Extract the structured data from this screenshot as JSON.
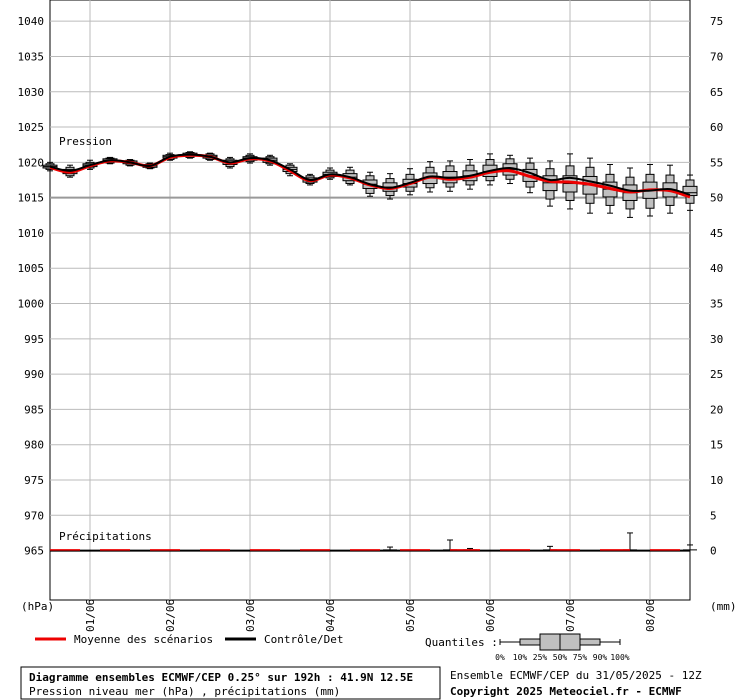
{
  "chart_data": {
    "type": "boxplot_line",
    "left_axis": {
      "label": "(hPa)",
      "ylim": [
        958,
        1043
      ],
      "ticks": [
        1040,
        1035,
        1030,
        1025,
        1020,
        1015,
        1010,
        1005,
        1000,
        995,
        990,
        985,
        980,
        975,
        970,
        965
      ]
    },
    "right_axis": {
      "label": "(mm)",
      "ylim": [
        -7,
        78
      ],
      "ticks": [
        75,
        70,
        65,
        60,
        55,
        50,
        45,
        40,
        35,
        30,
        25,
        20,
        15,
        10,
        5,
        0
      ]
    },
    "x_axis": {
      "range_hours": [
        0,
        192
      ],
      "day_labels": [
        "01/06",
        "02/06",
        "03/06",
        "04/06",
        "05/06",
        "06/06",
        "07/06",
        "08/06"
      ],
      "day_label_hours": [
        12,
        36,
        60,
        84,
        108,
        132,
        156,
        180
      ]
    },
    "labels": {
      "pressure": "Pression",
      "precip": "Précipitations"
    },
    "pressure_series": [
      {
        "h": 0,
        "p0": 1018.8,
        "p10": 1019.0,
        "p25": 1019.2,
        "p50": 1019.4,
        "p75": 1019.6,
        "p90": 1019.8,
        "p100": 1020.0,
        "mean": 1019.3,
        "ctrl": 1019.4
      },
      {
        "h": 6,
        "p0": 1017.9,
        "p10": 1018.1,
        "p25": 1018.4,
        "p50": 1018.7,
        "p75": 1019.0,
        "p90": 1019.3,
        "p100": 1019.6,
        "mean": 1018.6,
        "ctrl": 1018.8
      },
      {
        "h": 12,
        "p0": 1019.0,
        "p10": 1019.2,
        "p25": 1019.4,
        "p50": 1019.6,
        "p75": 1019.8,
        "p90": 1020.0,
        "p100": 1020.3,
        "mean": 1019.5,
        "ctrl": 1019.6
      },
      {
        "h": 18,
        "p0": 1019.8,
        "p10": 1019.9,
        "p25": 1020.1,
        "p50": 1020.3,
        "p75": 1020.5,
        "p90": 1020.6,
        "p100": 1020.7,
        "mean": 1020.2,
        "ctrl": 1020.3
      },
      {
        "h": 24,
        "p0": 1019.5,
        "p10": 1019.6,
        "p25": 1019.8,
        "p50": 1020.0,
        "p75": 1020.2,
        "p90": 1020.3,
        "p100": 1020.4,
        "mean": 1020.0,
        "ctrl": 1020.0
      },
      {
        "h": 30,
        "p0": 1019.1,
        "p10": 1019.2,
        "p25": 1019.3,
        "p50": 1019.5,
        "p75": 1019.7,
        "p90": 1019.8,
        "p100": 1019.9,
        "mean": 1019.5,
        "ctrl": 1019.5
      },
      {
        "h": 36,
        "p0": 1020.3,
        "p10": 1020.4,
        "p25": 1020.6,
        "p50": 1020.8,
        "p75": 1021.0,
        "p90": 1021.1,
        "p100": 1021.3,
        "mean": 1020.7,
        "ctrl": 1020.8
      },
      {
        "h": 42,
        "p0": 1020.6,
        "p10": 1020.7,
        "p25": 1020.9,
        "p50": 1021.1,
        "p75": 1021.3,
        "p90": 1021.4,
        "p100": 1021.5,
        "mean": 1021.0,
        "ctrl": 1021.1
      },
      {
        "h": 48,
        "p0": 1020.3,
        "p10": 1020.4,
        "p25": 1020.6,
        "p50": 1020.8,
        "p75": 1021.0,
        "p90": 1021.2,
        "p100": 1021.3,
        "mean": 1020.8,
        "ctrl": 1020.8
      },
      {
        "h": 54,
        "p0": 1019.2,
        "p10": 1019.4,
        "p25": 1019.7,
        "p50": 1020.0,
        "p75": 1020.3,
        "p90": 1020.5,
        "p100": 1020.7,
        "mean": 1019.9,
        "ctrl": 1020.0
      },
      {
        "h": 60,
        "p0": 1019.9,
        "p10": 1020.1,
        "p25": 1020.3,
        "p50": 1020.6,
        "p75": 1020.8,
        "p90": 1021.0,
        "p100": 1021.2,
        "mean": 1020.5,
        "ctrl": 1020.6
      },
      {
        "h": 66,
        "p0": 1019.6,
        "p10": 1019.8,
        "p25": 1020.0,
        "p50": 1020.3,
        "p75": 1020.6,
        "p90": 1020.8,
        "p100": 1021.0,
        "mean": 1020.2,
        "ctrl": 1020.3
      },
      {
        "h": 72,
        "p0": 1018.1,
        "p10": 1018.4,
        "p25": 1018.7,
        "p50": 1019.0,
        "p75": 1019.3,
        "p90": 1019.6,
        "p100": 1019.8,
        "mean": 1018.8,
        "ctrl": 1019.0
      },
      {
        "h": 78,
        "p0": 1016.8,
        "p10": 1017.0,
        "p25": 1017.2,
        "p50": 1017.5,
        "p75": 1017.8,
        "p90": 1018.1,
        "p100": 1018.3,
        "mean": 1017.4,
        "ctrl": 1017.5
      },
      {
        "h": 84,
        "p0": 1017.6,
        "p10": 1017.8,
        "p25": 1018.0,
        "p50": 1018.3,
        "p75": 1018.6,
        "p90": 1018.9,
        "p100": 1019.2,
        "mean": 1018.2,
        "ctrl": 1018.3
      },
      {
        "h": 90,
        "p0": 1016.8,
        "p10": 1017.0,
        "p25": 1017.4,
        "p50": 1017.9,
        "p75": 1018.4,
        "p90": 1018.9,
        "p100": 1019.3,
        "mean": 1017.8,
        "ctrl": 1017.9
      },
      {
        "h": 96,
        "p0": 1015.2,
        "p10": 1015.6,
        "p25": 1016.3,
        "p50": 1016.9,
        "p75": 1017.5,
        "p90": 1018.1,
        "p100": 1018.6,
        "mean": 1016.8,
        "ctrl": 1016.9
      },
      {
        "h": 102,
        "p0": 1014.8,
        "p10": 1015.3,
        "p25": 1015.9,
        "p50": 1016.5,
        "p75": 1017.1,
        "p90": 1017.7,
        "p100": 1018.4,
        "mean": 1016.3,
        "ctrl": 1016.4
      },
      {
        "h": 108,
        "p0": 1015.4,
        "p10": 1015.9,
        "p25": 1016.5,
        "p50": 1017.0,
        "p75": 1017.6,
        "p90": 1018.3,
        "p100": 1019.1,
        "mean": 1017.0,
        "ctrl": 1017.1
      },
      {
        "h": 114,
        "p0": 1015.8,
        "p10": 1016.4,
        "p25": 1017.0,
        "p50": 1017.8,
        "p75": 1018.5,
        "p90": 1019.3,
        "p100": 1020.1,
        "mean": 1017.9,
        "ctrl": 1018.0
      },
      {
        "h": 120,
        "p0": 1015.9,
        "p10": 1016.5,
        "p25": 1017.1,
        "p50": 1017.9,
        "p75": 1018.7,
        "p90": 1019.5,
        "p100": 1020.2,
        "mean": 1017.6,
        "ctrl": 1017.8
      },
      {
        "h": 126,
        "p0": 1016.2,
        "p10": 1016.8,
        "p25": 1017.4,
        "p50": 1018.1,
        "p75": 1018.8,
        "p90": 1019.6,
        "p100": 1020.4,
        "mean": 1017.9,
        "ctrl": 1018.1
      },
      {
        "h": 132,
        "p0": 1016.8,
        "p10": 1017.4,
        "p25": 1018.0,
        "p50": 1018.7,
        "p75": 1019.6,
        "p90": 1020.4,
        "p100": 1021.2,
        "mean": 1018.6,
        "ctrl": 1018.8
      },
      {
        "h": 138,
        "p0": 1017.0,
        "p10": 1017.6,
        "p25": 1018.2,
        "p50": 1019.0,
        "p75": 1019.8,
        "p90": 1020.5,
        "p100": 1021.0,
        "mean": 1018.8,
        "ctrl": 1019.2
      },
      {
        "h": 144,
        "p0": 1015.7,
        "p10": 1016.5,
        "p25": 1017.3,
        "p50": 1018.1,
        "p75": 1019.0,
        "p90": 1019.9,
        "p100": 1020.6,
        "mean": 1018.0,
        "ctrl": 1018.5
      },
      {
        "h": 150,
        "p0": 1013.8,
        "p10": 1014.8,
        "p25": 1016.0,
        "p50": 1017.1,
        "p75": 1018.1,
        "p90": 1019.1,
        "p100": 1020.2,
        "mean": 1017.3,
        "ctrl": 1017.5
      },
      {
        "h": 156,
        "p0": 1013.4,
        "p10": 1014.6,
        "p25": 1015.8,
        "p50": 1017.0,
        "p75": 1018.1,
        "p90": 1019.5,
        "p100": 1021.2,
        "mean": 1017.2,
        "ctrl": 1017.8
      },
      {
        "h": 162,
        "p0": 1012.8,
        "p10": 1014.2,
        "p25": 1015.5,
        "p50": 1016.8,
        "p75": 1018.0,
        "p90": 1019.3,
        "p100": 1020.6,
        "mean": 1016.9,
        "ctrl": 1017.3
      },
      {
        "h": 168,
        "p0": 1012.8,
        "p10": 1013.9,
        "p25": 1015.1,
        "p50": 1016.2,
        "p75": 1017.2,
        "p90": 1018.3,
        "p100": 1019.7,
        "mean": 1016.3,
        "ctrl": 1016.7
      },
      {
        "h": 174,
        "p0": 1012.2,
        "p10": 1013.4,
        "p25": 1014.6,
        "p50": 1015.7,
        "p75": 1016.8,
        "p90": 1017.9,
        "p100": 1019.2,
        "mean": 1015.8,
        "ctrl": 1016.0
      },
      {
        "h": 180,
        "p0": 1012.4,
        "p10": 1013.5,
        "p25": 1014.9,
        "p50": 1016.1,
        "p75": 1017.2,
        "p90": 1018.3,
        "p100": 1019.7,
        "mean": 1016.1,
        "ctrl": 1016.0
      },
      {
        "h": 186,
        "p0": 1012.8,
        "p10": 1013.9,
        "p25": 1015.1,
        "p50": 1016.1,
        "p75": 1017.1,
        "p90": 1018.2,
        "p100": 1019.6,
        "mean": 1016.0,
        "ctrl": 1016.2
      },
      {
        "h": 192,
        "p0": 1013.2,
        "p10": 1014.2,
        "p25": 1015.3,
        "p50": 1015.7,
        "p75": 1016.6,
        "p90": 1017.5,
        "p100": 1018.2,
        "mean": 1015.1,
        "ctrl": 1015.4
      }
    ],
    "precip_series": [
      {
        "h": 102,
        "p50": 0.1,
        "p100": 0.5
      },
      {
        "h": 120,
        "p50": 0.1,
        "p100": 1.5
      },
      {
        "h": 126,
        "p50": 0.1,
        "p100": 0.3
      },
      {
        "h": 150,
        "p50": 0.1,
        "p100": 0.6
      },
      {
        "h": 174,
        "p50": 0.1,
        "p100": 2.5
      },
      {
        "h": 192,
        "p50": 0.1,
        "p100": 0.8
      }
    ],
    "legend": {
      "mean": "Moyenne des scénarios",
      "control": "Contrôle/Det"
    },
    "quantiles": {
      "title": "Quantiles :",
      "labels": [
        "0%",
        "10%",
        "25%",
        "50%",
        "75%",
        "90%",
        "100%"
      ]
    },
    "title": "Diagramme ensembles ECMWF/CEP 0.25° sur 192h : 41.9N 12.5E",
    "subtitle": "Pression niveau mer (hPa) , précipitations (mm)",
    "run_info": "Ensemble ECMWF/CEP du 31/05/2025 - 12Z",
    "copyright": "Copyright 2025 Meteociel.fr - ECMWF",
    "colors": {
      "mean": "#ee0000",
      "control": "#000000",
      "box": "#c0c0c0",
      "grid": "#bbbbbb"
    }
  }
}
